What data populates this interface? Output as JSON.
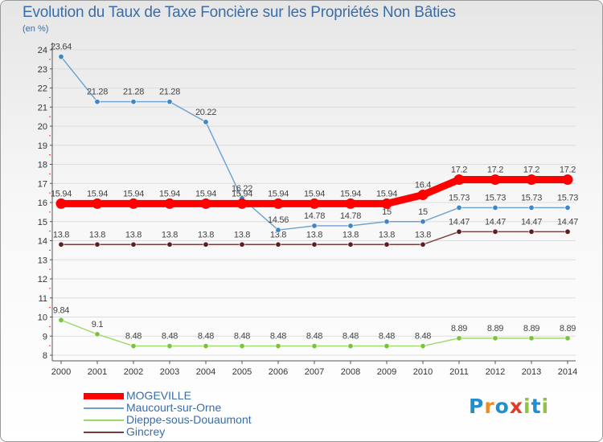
{
  "title": "Evolution du Taux de Taxe Foncière sur les Propriétés Non Bâties",
  "unit": "(en %)",
  "brand": {
    "text": "Proxiti",
    "colors": [
      "#1f8fd0",
      "#f08c1e",
      "#1f8fd0",
      "#e23b2b",
      "#8cc63f",
      "#1f8fd0",
      "#8cc63f"
    ]
  },
  "chart_data": {
    "type": "line",
    "title": "Evolution du Taux de Taxe Foncière sur les Propriétés Non Bâties",
    "ylabel": "(en %)",
    "xlabel": "",
    "ylim": [
      8,
      24
    ],
    "yticks": [
      8,
      9,
      10,
      11,
      12,
      13,
      14,
      15,
      16,
      17,
      18,
      19,
      20,
      21,
      22,
      23,
      24
    ],
    "categories": [
      "2000",
      "2001",
      "2002",
      "2003",
      "2004",
      "2005",
      "2006",
      "2007",
      "2008",
      "2009",
      "2010",
      "2011",
      "2012",
      "2013",
      "2014"
    ],
    "legend_position": "bottom-left",
    "series": [
      {
        "name": "Gincrey",
        "color": "#7a3b3b",
        "marker": "#5c1f1f",
        "values": [
          13.8,
          13.8,
          13.8,
          13.8,
          13.8,
          13.8,
          13.8,
          13.8,
          13.8,
          13.8,
          13.8,
          14.47,
          14.47,
          14.47,
          14.47
        ],
        "labels": [
          "13.8",
          "13.8",
          "13.8",
          "13.8",
          "13.8",
          "13.8",
          "13.8",
          "13.8",
          "13.8",
          "13.8",
          "13.8",
          "14.47",
          "14.47",
          "14.47",
          "14.47"
        ]
      },
      {
        "name": "Dieppe-sous-Douaumont",
        "color": "#9fd86a",
        "marker": "#7cc23f",
        "values": [
          9.84,
          9.1,
          8.48,
          8.48,
          8.48,
          8.48,
          8.48,
          8.48,
          8.48,
          8.48,
          8.48,
          8.89,
          8.89,
          8.89,
          8.89
        ],
        "labels": [
          "9.84",
          "9.1",
          "8.48",
          "8.48",
          "8.48",
          "8.48",
          "8.48",
          "8.48",
          "8.48",
          "8.48",
          "8.48",
          "8.89",
          "8.89",
          "8.89",
          "8.89"
        ]
      },
      {
        "name": "Maucourt-sur-Orne",
        "color": "#6ca0d0",
        "marker": "#3f86c6",
        "values": [
          23.64,
          21.28,
          21.28,
          21.28,
          20.22,
          16.22,
          14.56,
          14.78,
          14.78,
          15,
          15,
          15.73,
          15.73,
          15.73,
          15.73
        ],
        "labels": [
          "23.64",
          "21.28",
          "21.28",
          "21.28",
          "20.22",
          "16.22",
          "14.56",
          "14.78",
          "14.78",
          "15",
          "15",
          "15.73",
          "15.73",
          "15.73",
          "15.73"
        ]
      },
      {
        "name": "MOGEVILLE",
        "color": "#ff0000",
        "marker": "#ff0000",
        "values": [
          15.94,
          15.94,
          15.94,
          15.94,
          15.94,
          15.94,
          15.94,
          15.94,
          15.94,
          15.94,
          16.4,
          17.2,
          17.2,
          17.2,
          17.2
        ],
        "labels": [
          "15.94",
          "15.94",
          "15.94",
          "15.94",
          "15.94",
          "15.94",
          "15.94",
          "15.94",
          "15.94",
          "15.94",
          "16.4",
          "17.2",
          "17.2",
          "17.2",
          "17.2"
        ]
      }
    ]
  },
  "legend": [
    {
      "label": "MOGEVILLE",
      "color": "#ff0000",
      "text_color": "#3a6da8"
    },
    {
      "label": "Maucourt-sur-Orne",
      "color": "#6ca0d0",
      "text_color": "#3a6da8"
    },
    {
      "label": "Dieppe-sous-Douaumont",
      "color": "#9fd86a",
      "text_color": "#3a6da8"
    },
    {
      "label": "Gincrey",
      "color": "#7a3b3b",
      "text_color": "#3a6da8"
    }
  ]
}
